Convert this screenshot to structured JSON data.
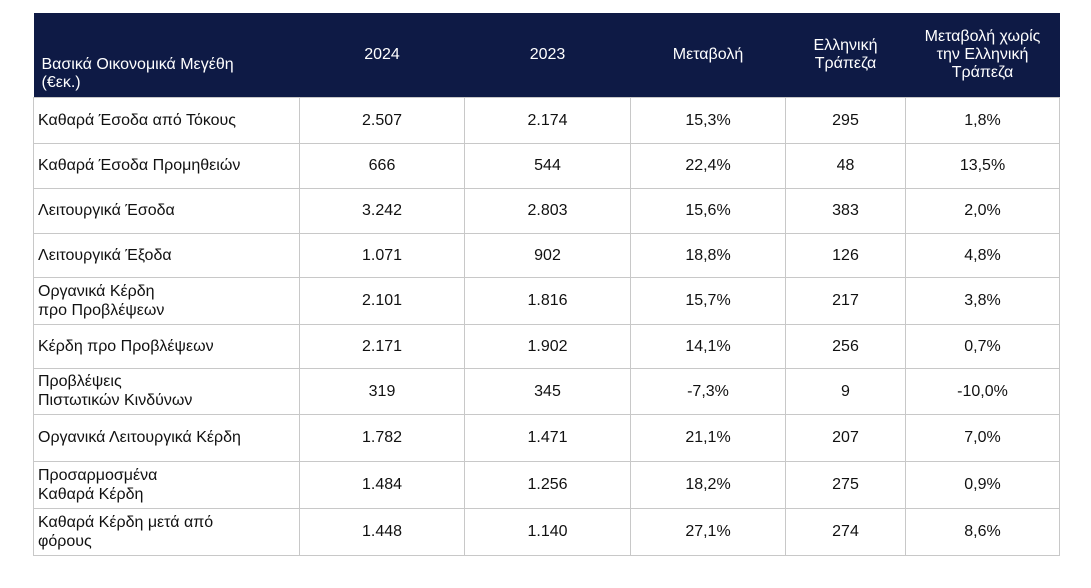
{
  "header": {
    "label_lines": [
      "Βασικά Οικονομικά Μεγέθη",
      "(€εκ.)"
    ],
    "y2024": "2024",
    "y2023": "2023",
    "change": "Μεταβολή",
    "hellenic_bank_lines": [
      "Ελληνική",
      "Τράπεζα"
    ],
    "change_excl_lines": [
      "Μεταβολή χωρίς",
      "την Ελληνική",
      "Τράπεζα"
    ]
  },
  "rows": [
    {
      "label": [
        "Καθαρά Έσοδα από Τόκους"
      ],
      "y2024": "2.507",
      "y2023": "2.174",
      "change": "15,3%",
      "hellenic_bank": "295",
      "change_excl": "1,8%"
    },
    {
      "label": [
        "Καθαρά Έσοδα Προμηθειών"
      ],
      "y2024": "666",
      "y2023": "544",
      "change": "22,4%",
      "hellenic_bank": "48",
      "change_excl": "13,5%"
    },
    {
      "label": [
        "Λειτουργικά Έσοδα"
      ],
      "y2024": "3.242",
      "y2023": "2.803",
      "change": "15,6%",
      "hellenic_bank": "383",
      "change_excl": "2,0%"
    },
    {
      "label": [
        "Λειτουργικά Έξοδα"
      ],
      "y2024": "1.071",
      "y2023": "902",
      "change": "18,8%",
      "hellenic_bank": "126",
      "change_excl": "4,8%"
    },
    {
      "label": [
        "Οργανικά Κέρδη",
        "προ Προβλέψεων"
      ],
      "y2024": "2.101",
      "y2023": "1.816",
      "change": "15,7%",
      "hellenic_bank": "217",
      "change_excl": "3,8%"
    },
    {
      "label": [
        "Κέρδη προ Προβλέψεων"
      ],
      "y2024": "2.171",
      "y2023": "1.902",
      "change": "14,1%",
      "hellenic_bank": "256",
      "change_excl": "0,7%"
    },
    {
      "label": [
        "Προβλέψεις",
        "Πιστωτικών Κινδύνων"
      ],
      "y2024": "319",
      "y2023": "345",
      "change": "-7,3%",
      "hellenic_bank": "9",
      "change_excl": "-10,0%"
    },
    {
      "label": [
        "Οργανικά Λειτουργικά Κέρδη"
      ],
      "y2024": "1.782",
      "y2023": "1.471",
      "change": "21,1%",
      "hellenic_bank": "207",
      "change_excl": "7,0%"
    },
    {
      "label": [
        "Προσαρμοσμένα",
        "Καθαρά Κέρδη"
      ],
      "y2024": "1.484",
      "y2023": "1.256",
      "change": "18,2%",
      "hellenic_bank": "275",
      "change_excl": "0,9%"
    },
    {
      "label": [
        "Καθαρά Κέρδη μετά από",
        "φόρους"
      ],
      "y2024": "1.448",
      "y2023": "1.140",
      "change": "27,1%",
      "hellenic_bank": "274",
      "change_excl": "8,6%"
    }
  ]
}
